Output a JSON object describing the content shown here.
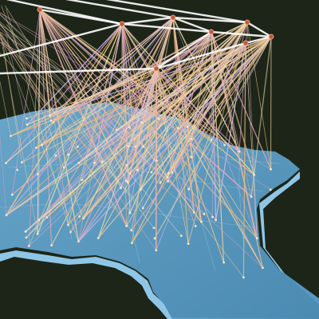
{
  "scene": {
    "subject": "network-visualization",
    "colors": {
      "background": "#1d2518",
      "land_top": "#4f93bf",
      "land_top_light": "#6eb0d8",
      "land_side": "#8fc6e6",
      "land_side_dark": "#5d9cc4",
      "backbone": "#ffffff",
      "hub": "#c2583a",
      "link_palette": [
        "#f2c88a",
        "#f0d7a6",
        "#e7a9b8",
        "#d9a2c9",
        "#f4e3b2",
        "#e7b97e",
        "#c9b7e8"
      ]
    }
  }
}
